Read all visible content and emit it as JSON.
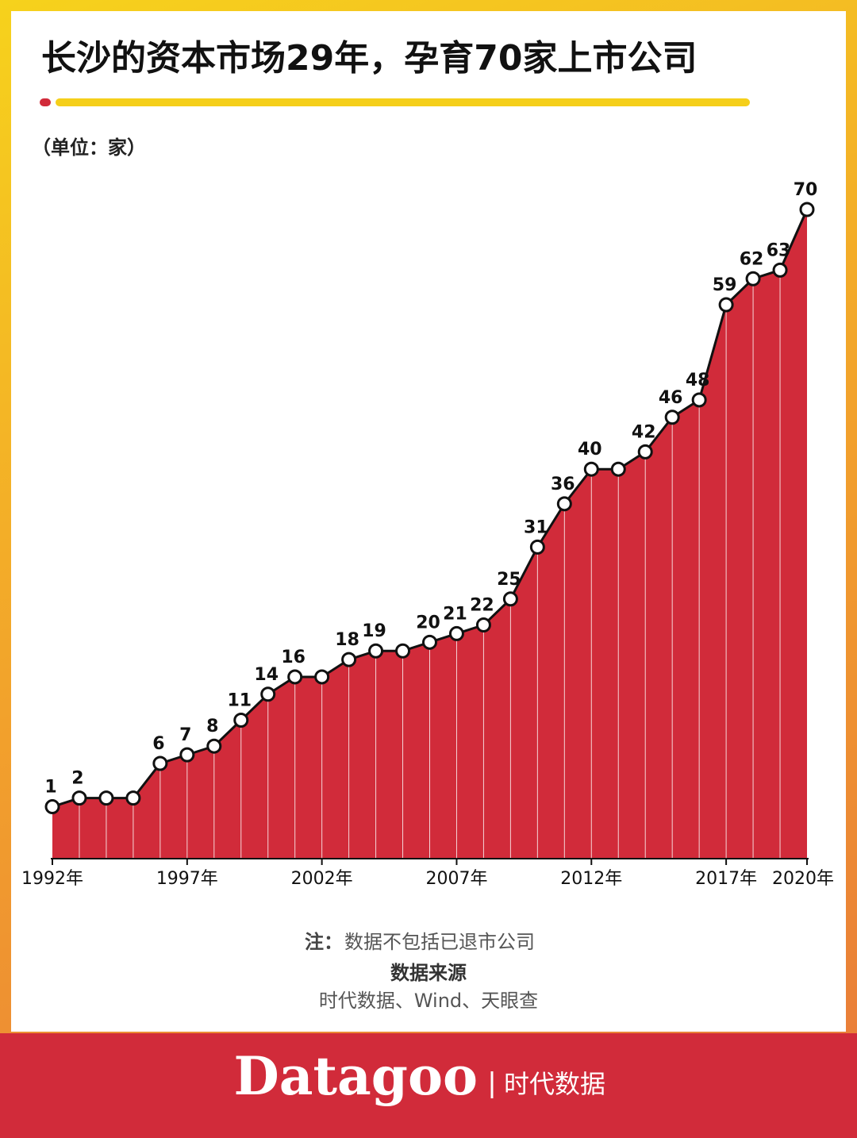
{
  "chart_data": {
    "type": "area-line",
    "title": "长沙的资本市场29年，孕育70家上市公司",
    "unit": "（单位：家）",
    "categories": [
      "1992年",
      null,
      null,
      null,
      null,
      "1997年",
      null,
      null,
      null,
      null,
      "2002年",
      null,
      null,
      null,
      null,
      "2007年",
      null,
      null,
      null,
      null,
      "2012年",
      null,
      null,
      null,
      null,
      "2017年",
      null,
      null,
      "2020年"
    ],
    "values": [
      1,
      2,
      2,
      2,
      6,
      7,
      8,
      11,
      14,
      16,
      16,
      18,
      19,
      19,
      20,
      21,
      22,
      25,
      31,
      36,
      40,
      40,
      42,
      46,
      48,
      59,
      62,
      63,
      70
    ],
    "value_labels": [
      "1",
      "2",
      null,
      null,
      "6",
      "7",
      "8",
      "11",
      "14",
      "16",
      null,
      "18",
      "19",
      null,
      "20",
      "21",
      "22",
      "25",
      "31",
      "36",
      "40",
      null,
      "42",
      "46",
      "48",
      "59",
      "62",
      "63",
      "70"
    ],
    "ylim": [
      -5,
      70
    ],
    "color": "#d12b3a",
    "line_color": "#111111"
  },
  "note_label": "注：",
  "note": "数据不包括已退市公司",
  "source_title": "数据来源",
  "source": "时代数据、Wind、天眼查",
  "brand": "Datagoo",
  "brand_cn": "时代数据"
}
